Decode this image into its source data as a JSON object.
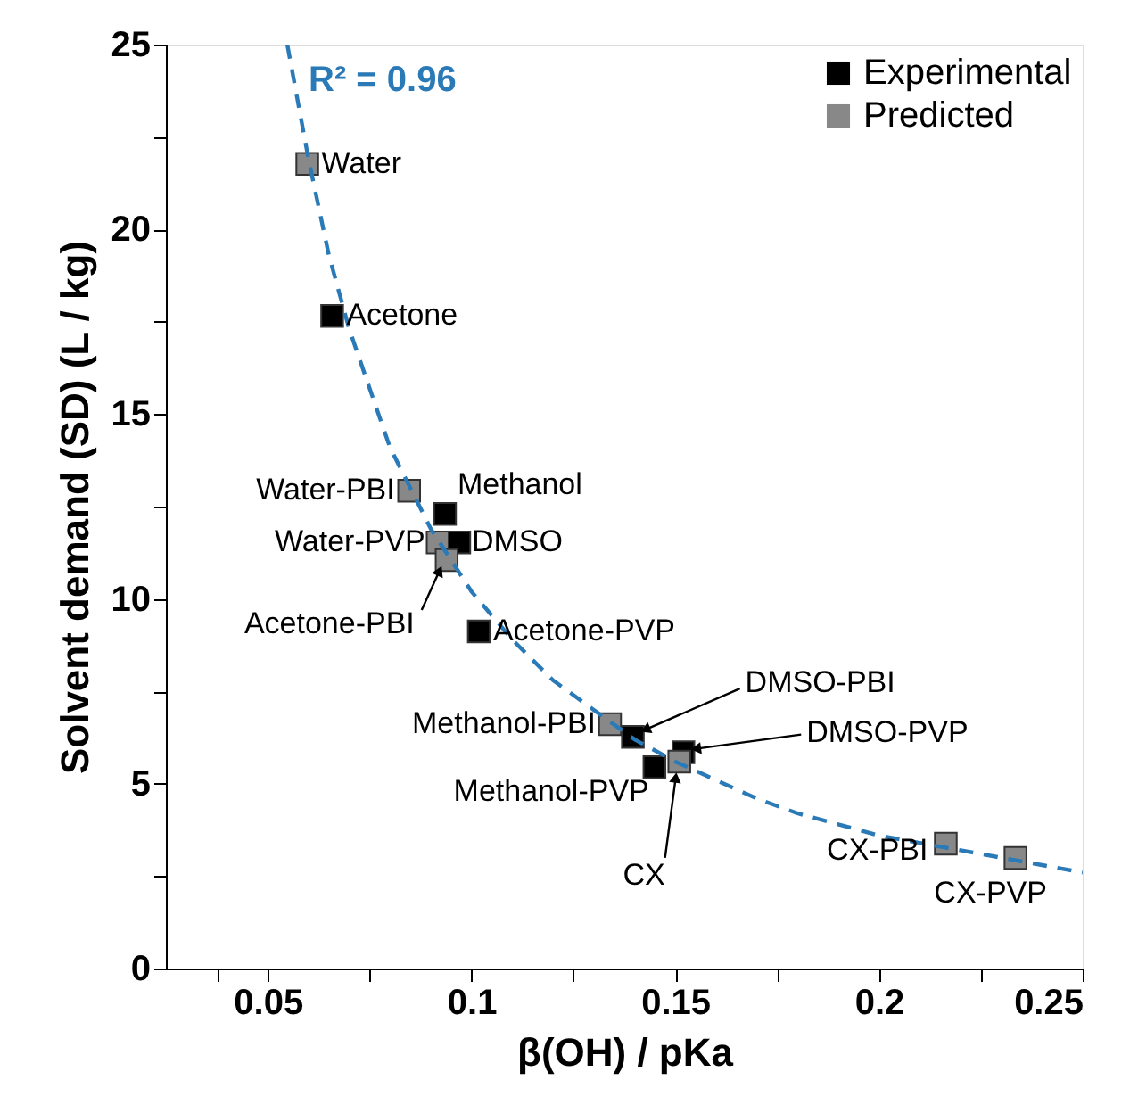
{
  "chart_data": {
    "type": "scatter",
    "xlabel": "β(OH) / pKa",
    "ylabel": "Solvent demand (SD) (L / kg)",
    "xlim": [
      0.025,
      0.25
    ],
    "ylim": [
      0,
      25
    ],
    "xticks": [
      {
        "value": 0.0375,
        "label": null
      },
      0.05,
      {
        "value": 0.075,
        "label": null
      },
      0.1,
      {
        "value": 0.125,
        "label": null
      },
      0.15,
      {
        "value": 0.175,
        "label": null
      },
      0.2,
      {
        "value": 0.225,
        "label": null
      },
      0.25
    ],
    "yticks": [
      0,
      {
        "value": 2.5,
        "label": null
      },
      5,
      {
        "value": 7.5,
        "label": null
      },
      10,
      {
        "value": 12.5,
        "label": null
      },
      15,
      {
        "value": 17.5,
        "label": null
      },
      20,
      {
        "value": 22.5,
        "label": null
      },
      25
    ],
    "grid": false,
    "legend": "top right",
    "marker": "square",
    "series": [
      {
        "name": "Experimental",
        "color": "#000000",
        "x": [
          0.0658,
          0.0935,
          0.097,
          0.1018,
          0.1396,
          0.1449,
          0.152
        ],
        "values": [
          17.66,
          12.3,
          11.53,
          9.12,
          6.27,
          5.45,
          5.85
        ]
      },
      {
        "name": "Predicted",
        "color": "#888888",
        "x": [
          0.0597,
          0.0847,
          0.0917,
          0.0939,
          0.134,
          0.151,
          0.2164,
          0.2335
        ],
        "values": [
          21.77,
          12.93,
          11.53,
          11.05,
          6.61,
          5.6,
          3.38,
          2.99
        ]
      },
      {
        "type": "line",
        "line_style": "dashed",
        "marker": "none",
        "color": "#2a7ab8",
        "x": [
          0.0548,
          0.06,
          0.065,
          0.07,
          0.08,
          0.09,
          0.1,
          0.11,
          0.12,
          0.13,
          0.14,
          0.15,
          0.16,
          0.17,
          0.18,
          0.19,
          0.2,
          0.21,
          0.22,
          0.23,
          0.24,
          0.25
        ],
        "values": [
          25.0,
          21.9,
          19.3,
          17.3,
          14.1,
          11.9,
          10.2,
          8.9,
          7.8,
          7.0,
          6.2,
          5.6,
          5.1,
          4.6,
          4.2,
          3.9,
          3.6,
          3.4,
          3.2,
          3.0,
          2.8,
          2.6
        ]
      }
    ],
    "annotations": [
      "R² = 0.96",
      {
        "text": "Water",
        "x": 0.0597,
        "y": 21.77
      },
      {
        "text": "Acetone",
        "x": 0.0658,
        "y": 17.66
      },
      {
        "text": "Water-PBI",
        "x": 0.0847,
        "y": 12.93
      },
      {
        "text": "Methanol",
        "x": 0.0935,
        "y": 12.3
      },
      {
        "text": "Water-PVP",
        "x": 0.0917,
        "y": 11.53
      },
      {
        "text": "DMSO",
        "x": 0.097,
        "y": 11.53
      },
      {
        "text": "Acetone-PBI",
        "x": 0.0939,
        "y": 11.05
      },
      {
        "text": "Acetone-PVP",
        "x": 0.1018,
        "y": 9.12
      },
      {
        "text": "Methanol-PBI",
        "x": 0.134,
        "y": 6.61
      },
      {
        "text": "DMSO-PBI",
        "x": 0.1396,
        "y": 6.27
      },
      {
        "text": "Methanol-PVP",
        "x": 0.1449,
        "y": 5.45
      },
      {
        "text": "DMSO-PVP",
        "x": 0.152,
        "y": 5.85
      },
      {
        "text": "CX",
        "x": 0.151,
        "y": 5.6
      },
      {
        "text": "CX-PBI",
        "x": 0.2164,
        "y": 3.38
      },
      {
        "text": "CX-PVP",
        "x": 0.2335,
        "y": 2.99
      }
    ]
  }
}
